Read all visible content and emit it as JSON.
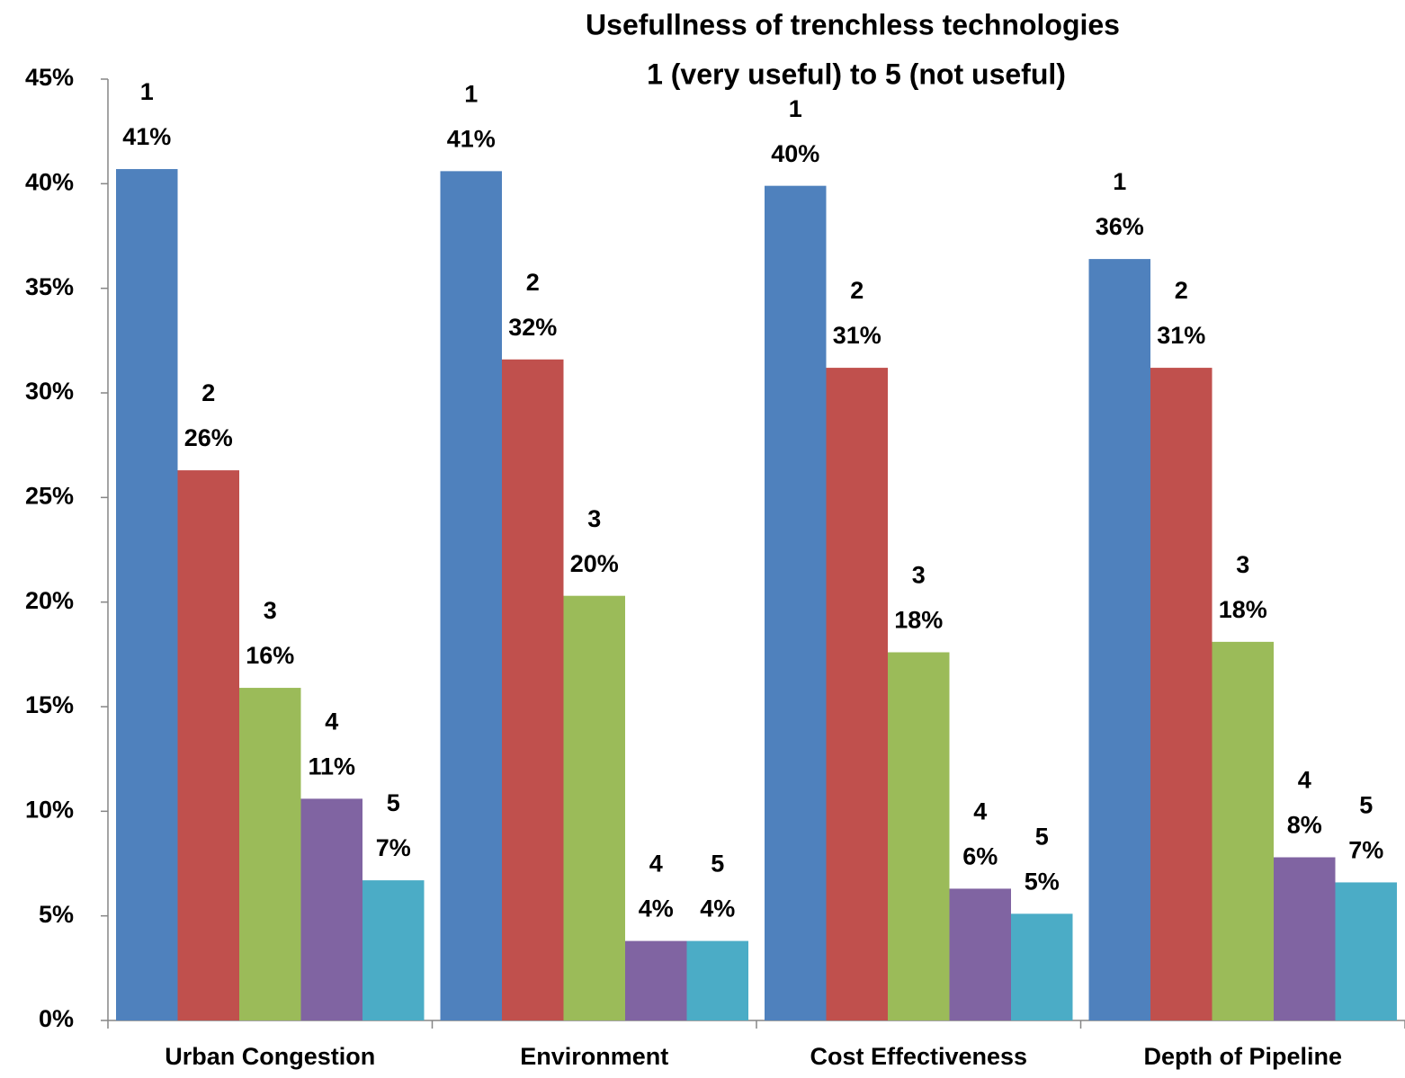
{
  "chart_data": {
    "type": "bar",
    "title": "Usefullness of trenchless technologies",
    "subtitle": "1 (very useful) to 5 (not useful)",
    "categories": [
      "Urban Congestion",
      "Environment",
      "Cost Effectiveness",
      "Depth of Pipeline"
    ],
    "series": [
      {
        "name": "1",
        "color": "#4f81bd",
        "values": [
          40.7,
          40.6,
          39.9,
          36.4
        ],
        "value_labels": [
          "41%",
          "41%",
          "40%",
          "36%"
        ]
      },
      {
        "name": "2",
        "color": "#c0504d",
        "values": [
          26.3,
          31.6,
          31.2,
          31.2
        ],
        "value_labels": [
          "26%",
          "32%",
          "31%",
          "31%"
        ]
      },
      {
        "name": "3",
        "color": "#9bbb59",
        "values": [
          15.9,
          20.3,
          17.6,
          18.1
        ],
        "value_labels": [
          "16%",
          "20%",
          "18%",
          "18%"
        ]
      },
      {
        "name": "4",
        "color": "#8064a2",
        "values": [
          10.6,
          3.8,
          6.3,
          7.8
        ],
        "value_labels": [
          "11%",
          "4%",
          "6%",
          "8%"
        ]
      },
      {
        "name": "5",
        "color": "#4bacc6",
        "values": [
          6.7,
          3.8,
          5.1,
          6.6
        ],
        "value_labels": [
          "7%",
          "4%",
          "5%",
          "7%"
        ]
      }
    ],
    "ylim": [
      0,
      45
    ],
    "yticks": [
      {
        "value": 0,
        "label": "0%"
      },
      {
        "value": 5,
        "label": "5%"
      },
      {
        "value": 10,
        "label": "10%"
      },
      {
        "value": 15,
        "label": "15%"
      },
      {
        "value": 20,
        "label": "20%"
      },
      {
        "value": 25,
        "label": "25%"
      },
      {
        "value": 30,
        "label": "30%"
      },
      {
        "value": 35,
        "label": "35%"
      },
      {
        "value": 40,
        "label": "40%"
      },
      {
        "value": 45,
        "label": "45%"
      }
    ],
    "grid": false
  }
}
